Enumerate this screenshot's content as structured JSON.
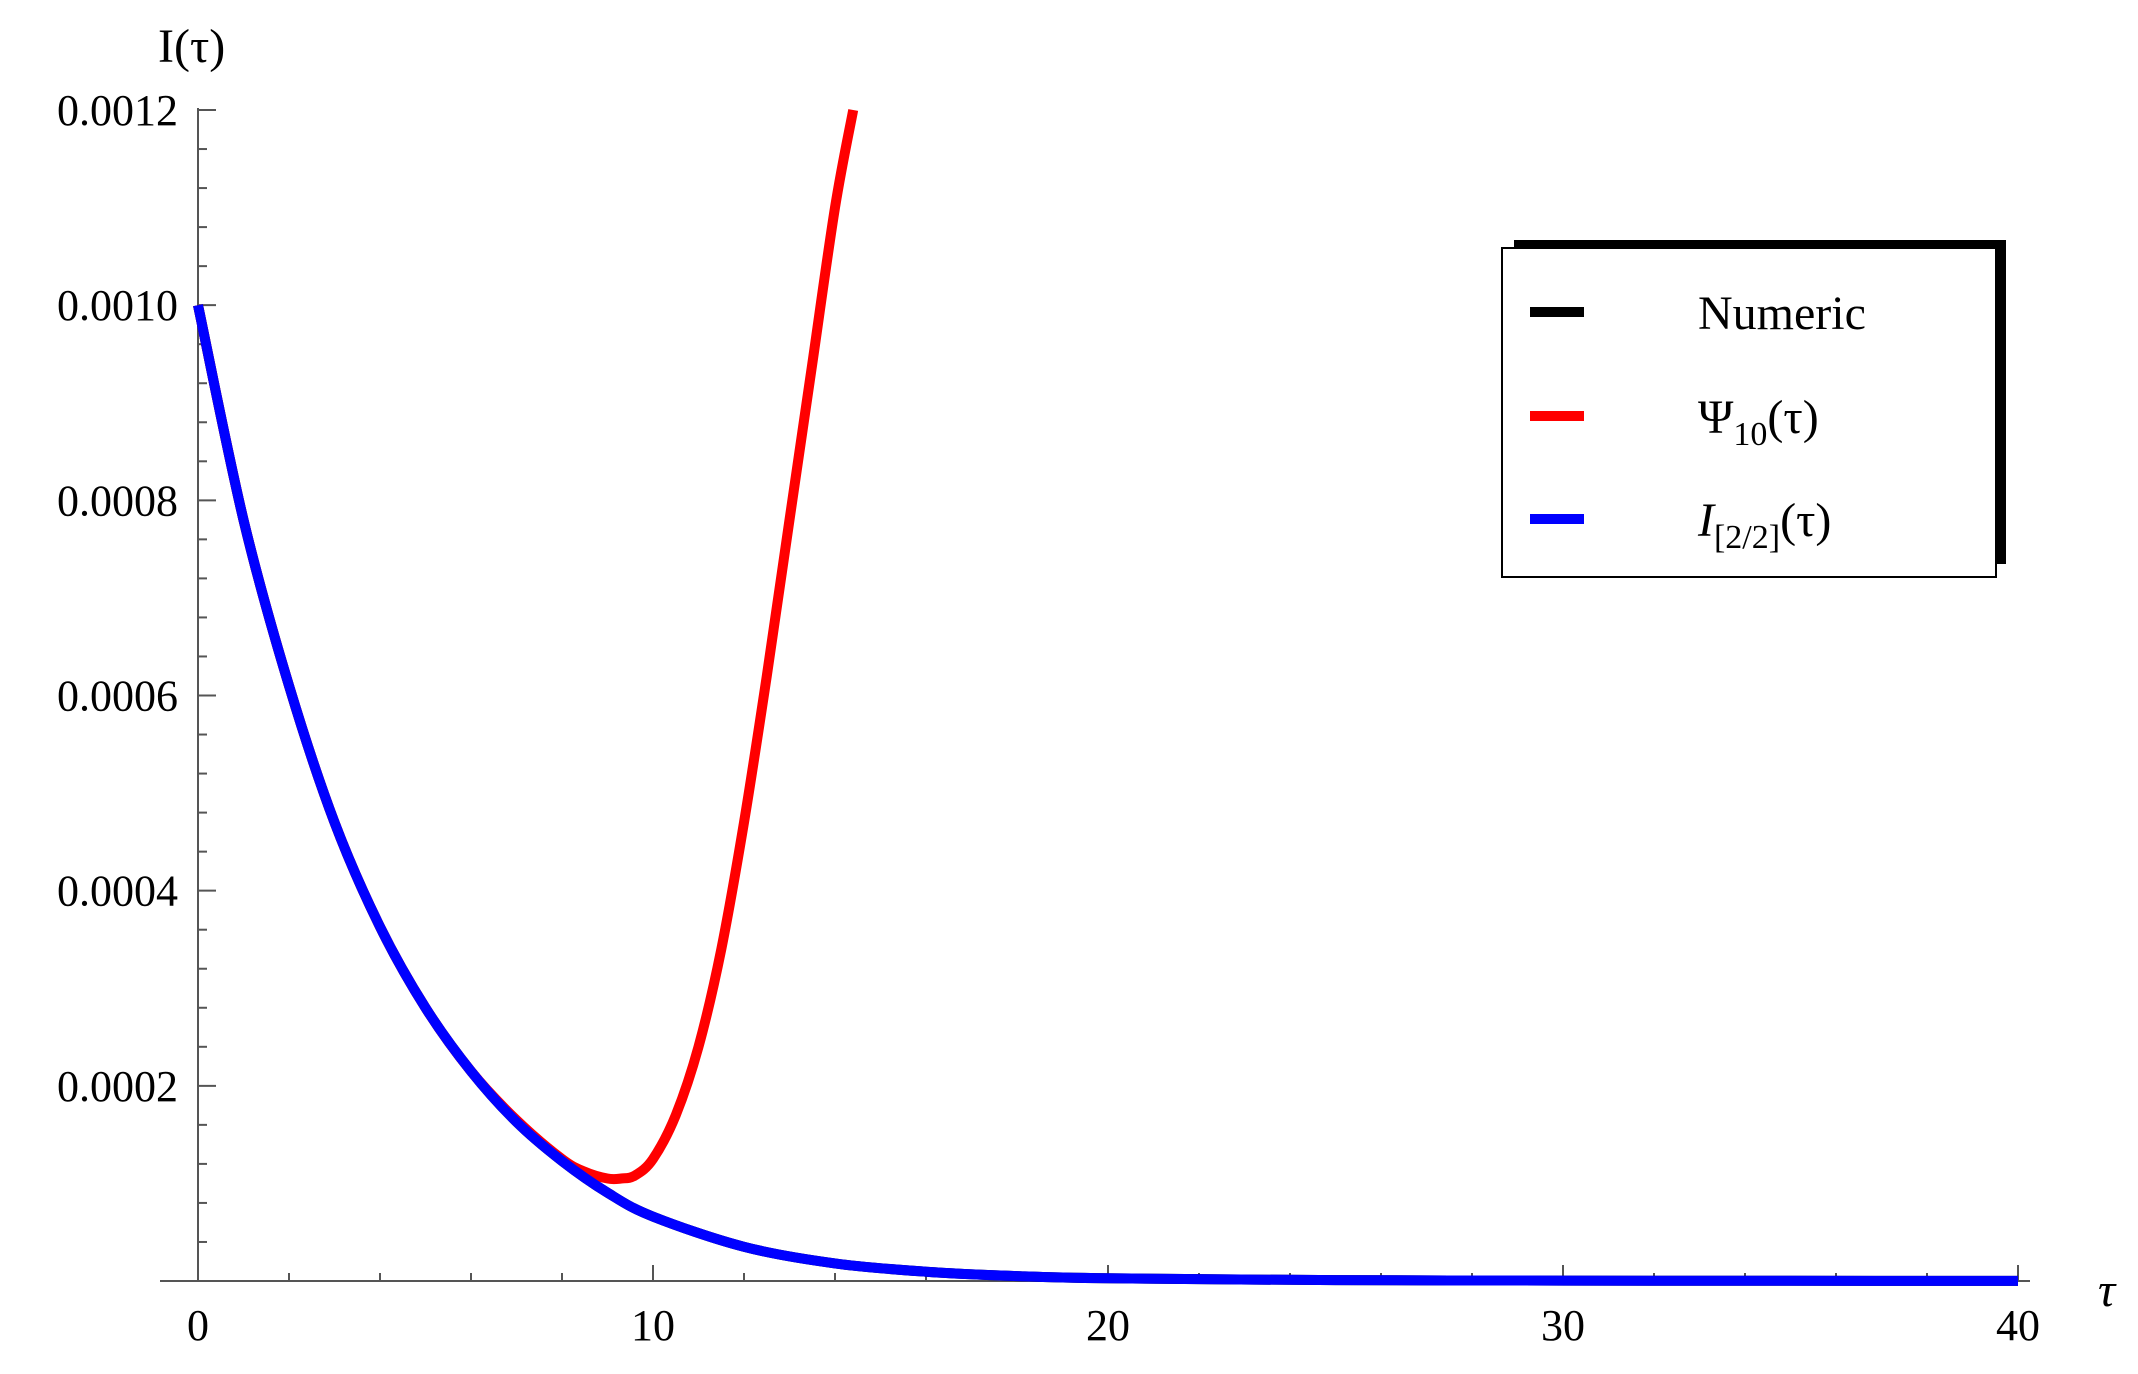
{
  "chart_data": {
    "type": "line",
    "title": "",
    "xlabel": "τ",
    "ylabel": "I(τ)",
    "xlim": [
      0,
      40
    ],
    "ylim": [
      0,
      0.0012
    ],
    "x_ticks": [
      0,
      10,
      20,
      30,
      40
    ],
    "x_tick_labels": [
      "0",
      "10",
      "20",
      "30",
      "40"
    ],
    "y_ticks": [
      0.0002,
      0.0004,
      0.0006,
      0.0008,
      0.001,
      0.0012
    ],
    "y_tick_labels": [
      "0.0002",
      "0.0004",
      "0.0006",
      "0.0008",
      "0.0010",
      "0.0012"
    ],
    "grid": false,
    "legend_position": "top-right",
    "series": [
      {
        "name": "Numeric",
        "color": "#000000",
        "x": [
          0,
          1,
          2,
          3,
          4,
          5,
          6,
          7,
          8,
          9,
          10,
          12,
          14,
          16,
          18,
          20,
          25,
          30,
          35,
          40
        ],
        "y": [
          0.001,
          0.00078,
          0.00061,
          0.00047,
          0.000363,
          0.00028,
          0.000215,
          0.000163,
          0.000123,
          9.05e-05,
          6.6e-05,
          3.5e-05,
          1.8e-05,
          9.5e-06,
          5e-06,
          2.8e-06,
          9e-07,
          4e-07,
          2e-07,
          1e-07
        ]
      },
      {
        "name": "Ψ10(τ)",
        "name_main": "Ψ",
        "name_sub": "10",
        "name_tail": "(τ)",
        "color": "#ff0000",
        "x": [
          0,
          1,
          2,
          3,
          4,
          5,
          6,
          7,
          8,
          8.5,
          9,
          9.3,
          9.6,
          10,
          10.5,
          11,
          11.5,
          12,
          12.5,
          13,
          13.5,
          14,
          14.4
        ],
        "y": [
          0.001,
          0.00078,
          0.00061,
          0.00047,
          0.000363,
          0.00028,
          0.000215,
          0.000165,
          0.000125,
          0.000112,
          0.000105,
          0.000105,
          0.000108,
          0.000125,
          0.00017,
          0.00024,
          0.00034,
          0.00047,
          0.00062,
          0.00078,
          0.00094,
          0.0011,
          0.0012
        ]
      },
      {
        "name": "I[2/2](τ)",
        "name_main": "I",
        "name_sub": "[2/2]",
        "name_tail": "(τ)",
        "color": "#0000ff",
        "x": [
          0,
          1,
          2,
          3,
          4,
          5,
          6,
          7,
          8,
          9,
          10,
          12,
          14,
          16,
          18,
          20,
          25,
          30,
          35,
          40
        ],
        "y": [
          0.001,
          0.00078,
          0.00061,
          0.00047,
          0.000363,
          0.00028,
          0.000215,
          0.000163,
          0.000123,
          9.05e-05,
          6.6e-05,
          3.5e-05,
          1.8e-05,
          9.5e-06,
          5e-06,
          2.8e-06,
          9e-07,
          4e-07,
          2e-07,
          1e-07
        ]
      }
    ]
  }
}
